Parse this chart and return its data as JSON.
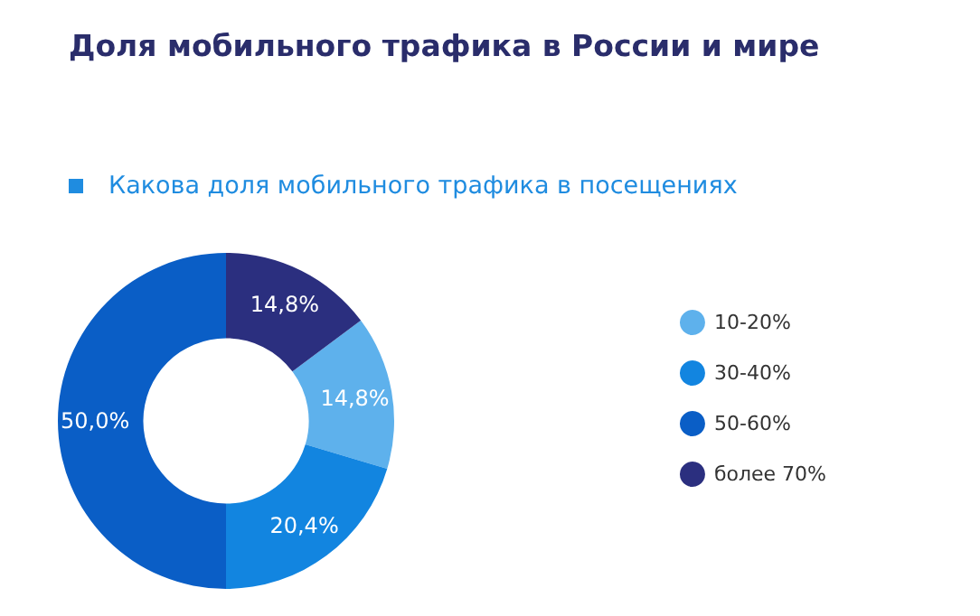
{
  "chart_data": {
    "type": "donut",
    "title": "Доля мобильного трафика в России и мире",
    "subtitle": "Какова доля мобильного трафика в посещениях",
    "categories": [
      "10-20%",
      "30-40%",
      "50-60%",
      "более 70%"
    ],
    "values": [
      14.8,
      20.4,
      50.0,
      14.8
    ],
    "value_labels": [
      "14,8%",
      "20,4%",
      "50,0%",
      "14,8%"
    ],
    "colors": [
      "#5eb1ec",
      "#1285e0",
      "#0a5ec6",
      "#2b2f7f"
    ],
    "legend": "right"
  }
}
